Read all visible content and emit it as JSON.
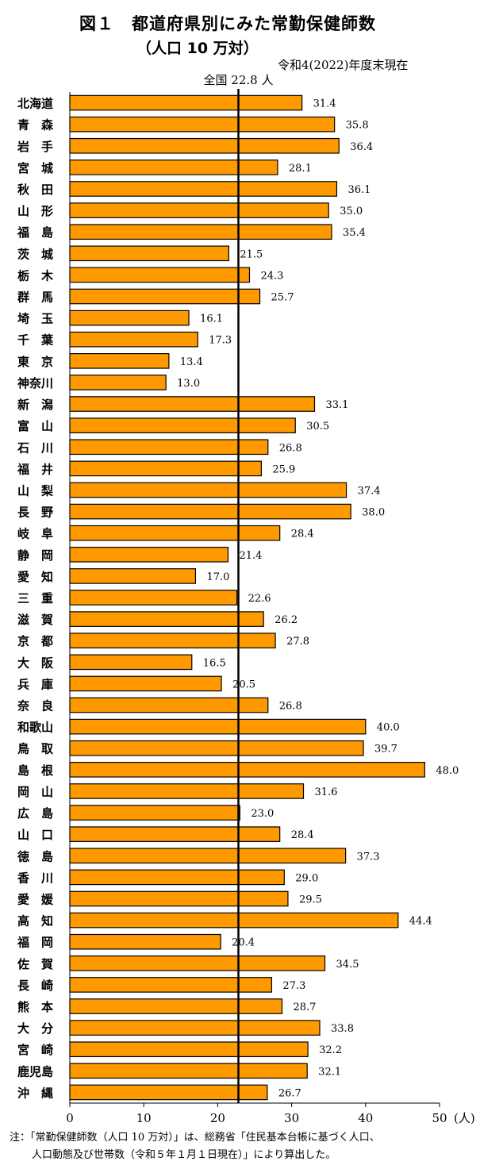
{
  "chart_data": {
    "type": "bar",
    "orientation": "horizontal",
    "title": "図１　都道府県別にみた常勤保健師数",
    "subtitle": "（人口 10 万対）",
    "date_note": "令和4(2022)年度末現在",
    "reference_line": {
      "label": "全国  22.8 人",
      "value": 22.8
    },
    "x_unit": "(人)",
    "xlim": [
      0,
      50
    ],
    "xticks": [
      0,
      10,
      20,
      30,
      40,
      50
    ],
    "bar_color": "#ff9900",
    "categories": [
      "北海道",
      "青　森",
      "岩　手",
      "宮　城",
      "秋　田",
      "山　形",
      "福　島",
      "茨　城",
      "栃　木",
      "群　馬",
      "埼　玉",
      "千　葉",
      "東　京",
      "神奈川",
      "新　潟",
      "富　山",
      "石　川",
      "福　井",
      "山　梨",
      "長　野",
      "岐　阜",
      "静　岡",
      "愛　知",
      "三　重",
      "滋　賀",
      "京　都",
      "大　阪",
      "兵　庫",
      "奈　良",
      "和歌山",
      "鳥　取",
      "島　根",
      "岡　山",
      "広　島",
      "山　口",
      "徳　島",
      "香　川",
      "愛　媛",
      "高　知",
      "福　岡",
      "佐　賀",
      "長　崎",
      "熊　本",
      "大　分",
      "宮　崎",
      "鹿児島",
      "沖　縄"
    ],
    "values": [
      31.4,
      35.8,
      36.4,
      28.1,
      36.1,
      35.0,
      35.4,
      21.5,
      24.3,
      25.7,
      16.1,
      17.3,
      13.4,
      13.0,
      33.1,
      30.5,
      26.8,
      25.9,
      37.4,
      38.0,
      28.4,
      21.4,
      17.0,
      22.6,
      26.2,
      27.8,
      16.5,
      20.5,
      26.8,
      40.0,
      39.7,
      48.0,
      31.6,
      23.0,
      28.4,
      37.3,
      29.0,
      29.5,
      44.4,
      20.4,
      34.5,
      27.3,
      28.7,
      33.8,
      32.2,
      32.1,
      26.7
    ],
    "value_labels": [
      "31.4",
      "35.8",
      "36.4",
      "28.1",
      "36.1",
      "35.0",
      "35.4",
      "21.5",
      "24.3",
      "25.7",
      "16.1",
      "17.3",
      "13.4",
      "13.0",
      "33.1",
      "30.5",
      "26.8",
      "25.9",
      "37.4",
      "38.0",
      "28.4",
      "21.4",
      "17.0",
      "22.6",
      "26.2",
      "27.8",
      "16.5",
      "20.5",
      "26.8",
      "40.0",
      "39.7",
      "48.0",
      "31.6",
      "23.0",
      "28.4",
      "37.3",
      "29.0",
      "29.5",
      "44.4",
      "20.4",
      "34.5",
      "27.3",
      "28.7",
      "33.8",
      "32.2",
      "32.1",
      "26.7"
    ]
  },
  "notes": {
    "line1": "注：「常勤保健師数（人口 10 万対）」は、総務省「住民基本台帳に基づく人口、",
    "line2": "人口動態及び世帯数（令和５年１月１日現在）」により算出した。"
  }
}
